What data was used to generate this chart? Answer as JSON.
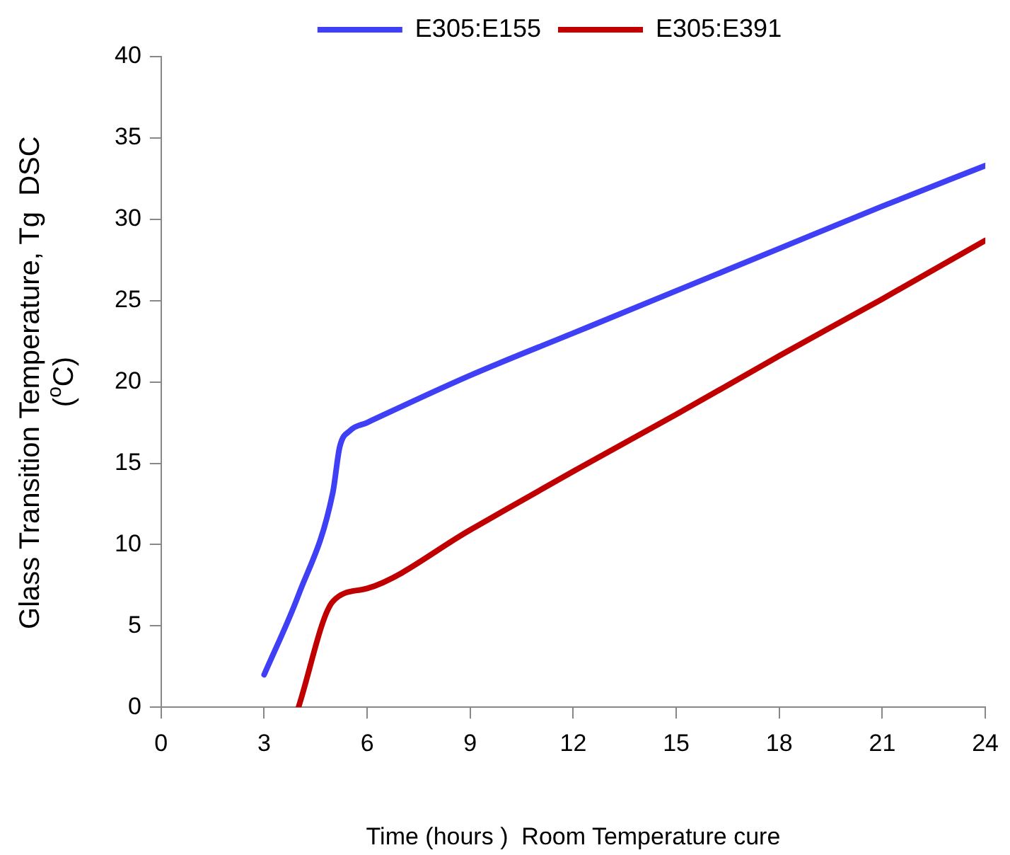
{
  "chart_data": {
    "type": "line",
    "xlabel": "Time (hours )  Room Temperature cure",
    "ylabel": "Glass Transition Temperature, Tg  DSC\n($^{o}$C)",
    "xlim": [
      0,
      24
    ],
    "xticks": [
      0,
      3,
      6,
      9,
      12,
      15,
      18,
      21,
      24
    ],
    "ylim": [
      0,
      40
    ],
    "yticks": [
      0,
      5,
      10,
      15,
      20,
      25,
      30,
      35,
      40
    ],
    "grid": false,
    "legend": "top",
    "marker": "none",
    "line_style": "solid",
    "series": [
      {
        "name": "E305:E155",
        "color": "#3f3ff5",
        "x": [
          3,
          4,
          5,
          5.2,
          5.5,
          6,
          9,
          12,
          15,
          18,
          21,
          24
        ],
        "values": [
          2,
          6.9,
          13.2,
          16,
          17,
          17.5,
          20.4,
          23,
          25.6,
          28.2,
          30.8,
          33.3
        ]
      },
      {
        "name": "E305:E391",
        "color": "#c00000",
        "x": [
          4,
          5,
          6,
          9,
          12,
          15,
          18,
          21,
          24
        ],
        "values": [
          0,
          6.5,
          7.3,
          10.9,
          14.5,
          18,
          21.6,
          25.1,
          28.7
        ]
      }
    ]
  }
}
